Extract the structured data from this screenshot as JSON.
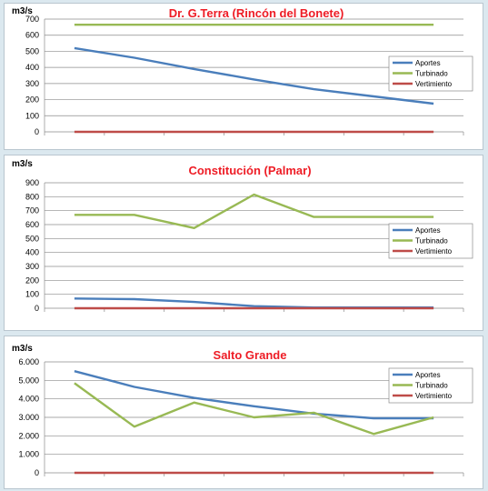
{
  "chart_data": [
    {
      "type": "line",
      "title": "Dr. G.Terra (Rincón del Bonete)",
      "ylabel": "m3/s",
      "ylim": [
        0,
        700
      ],
      "yticks": [
        0,
        100,
        200,
        300,
        400,
        500,
        600,
        700
      ],
      "ytick_labels": [
        "0",
        "100",
        "200",
        "300",
        "400",
        "500",
        "600",
        "700"
      ],
      "x": [
        1,
        2,
        3,
        4,
        5,
        6,
        7
      ],
      "grid": true,
      "legend_position": "right",
      "series": [
        {
          "name": "Aportes",
          "color": "#4a7ebb",
          "values": [
            520,
            460,
            390,
            325,
            265,
            220,
            175
          ]
        },
        {
          "name": "Turbinado",
          "color": "#98b954",
          "values": [
            665,
            665,
            665,
            665,
            665,
            665,
            665
          ]
        },
        {
          "name": "Vertimiento",
          "color": "#be4b48",
          "values": [
            0,
            0,
            0,
            0,
            0,
            0,
            0
          ]
        }
      ]
    },
    {
      "type": "line",
      "title": "Constitución (Palmar)",
      "ylabel": "m3/s",
      "ylim": [
        0,
        900
      ],
      "yticks": [
        0,
        100,
        200,
        300,
        400,
        500,
        600,
        700,
        800,
        900
      ],
      "ytick_labels": [
        "0",
        "100",
        "200",
        "300",
        "400",
        "500",
        "600",
        "700",
        "800",
        "900"
      ],
      "x": [
        1,
        2,
        3,
        4,
        5,
        6,
        7
      ],
      "grid": true,
      "legend_position": "right",
      "series": [
        {
          "name": "Aportes",
          "color": "#4a7ebb",
          "values": [
            70,
            65,
            45,
            15,
            5,
            5,
            5
          ]
        },
        {
          "name": "Turbinado",
          "color": "#98b954",
          "values": [
            670,
            670,
            575,
            815,
            655,
            655,
            655
          ]
        },
        {
          "name": "Vertimiento",
          "color": "#be4b48",
          "values": [
            0,
            0,
            0,
            0,
            0,
            0,
            0
          ]
        }
      ]
    },
    {
      "type": "line",
      "title": "Salto Grande",
      "ylabel": "m3/s",
      "ylim": [
        0,
        6000
      ],
      "yticks": [
        0,
        1000,
        2000,
        3000,
        4000,
        5000,
        6000
      ],
      "ytick_labels": [
        "0",
        "1.000",
        "2.000",
        "3.000",
        "4.000",
        "5.000",
        "6.000"
      ],
      "x": [
        1,
        2,
        3,
        4,
        5,
        6,
        7
      ],
      "grid": true,
      "legend_position": "top-right",
      "series": [
        {
          "name": "Aportes",
          "color": "#4a7ebb",
          "values": [
            5500,
            4650,
            4050,
            3600,
            3200,
            2950,
            2950
          ]
        },
        {
          "name": "Turbinado",
          "color": "#98b954",
          "values": [
            4850,
            2500,
            3800,
            3000,
            3250,
            2100,
            3000
          ]
        },
        {
          "name": "Vertimiento",
          "color": "#be4b48",
          "values": [
            0,
            0,
            0,
            0,
            0,
            0,
            0
          ]
        }
      ]
    }
  ]
}
